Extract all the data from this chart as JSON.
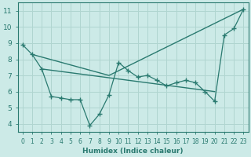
{
  "xlabel": "Humidex (Indice chaleur)",
  "bg_color": "#cceae7",
  "grid_color": "#b0d5d0",
  "line_color": "#2a7a70",
  "xlim": [
    -0.5,
    23.5
  ],
  "ylim": [
    3.5,
    11.5
  ],
  "xticks": [
    0,
    1,
    2,
    3,
    4,
    5,
    6,
    7,
    8,
    9,
    10,
    11,
    12,
    13,
    14,
    15,
    16,
    17,
    18,
    19,
    20,
    21,
    22,
    23
  ],
  "yticks": [
    4,
    5,
    6,
    7,
    8,
    9,
    10,
    11
  ],
  "line1_x": [
    0,
    1,
    2,
    3,
    4,
    5,
    6,
    7,
    8,
    9,
    10,
    11,
    12,
    13,
    14,
    15,
    16,
    17,
    18,
    19,
    20,
    21,
    22,
    23
  ],
  "line1_y": [
    8.9,
    8.3,
    7.4,
    5.7,
    5.6,
    5.5,
    5.5,
    3.9,
    4.6,
    5.8,
    7.8,
    7.3,
    6.9,
    7.0,
    6.7,
    6.35,
    6.55,
    6.7,
    6.55,
    6.0,
    5.4,
    9.5,
    9.9,
    11.1
  ],
  "line2_x": [
    1,
    9,
    23
  ],
  "line2_y": [
    8.3,
    7.0,
    11.1
  ],
  "line3_x": [
    2,
    20
  ],
  "line3_y": [
    7.4,
    6.0
  ]
}
